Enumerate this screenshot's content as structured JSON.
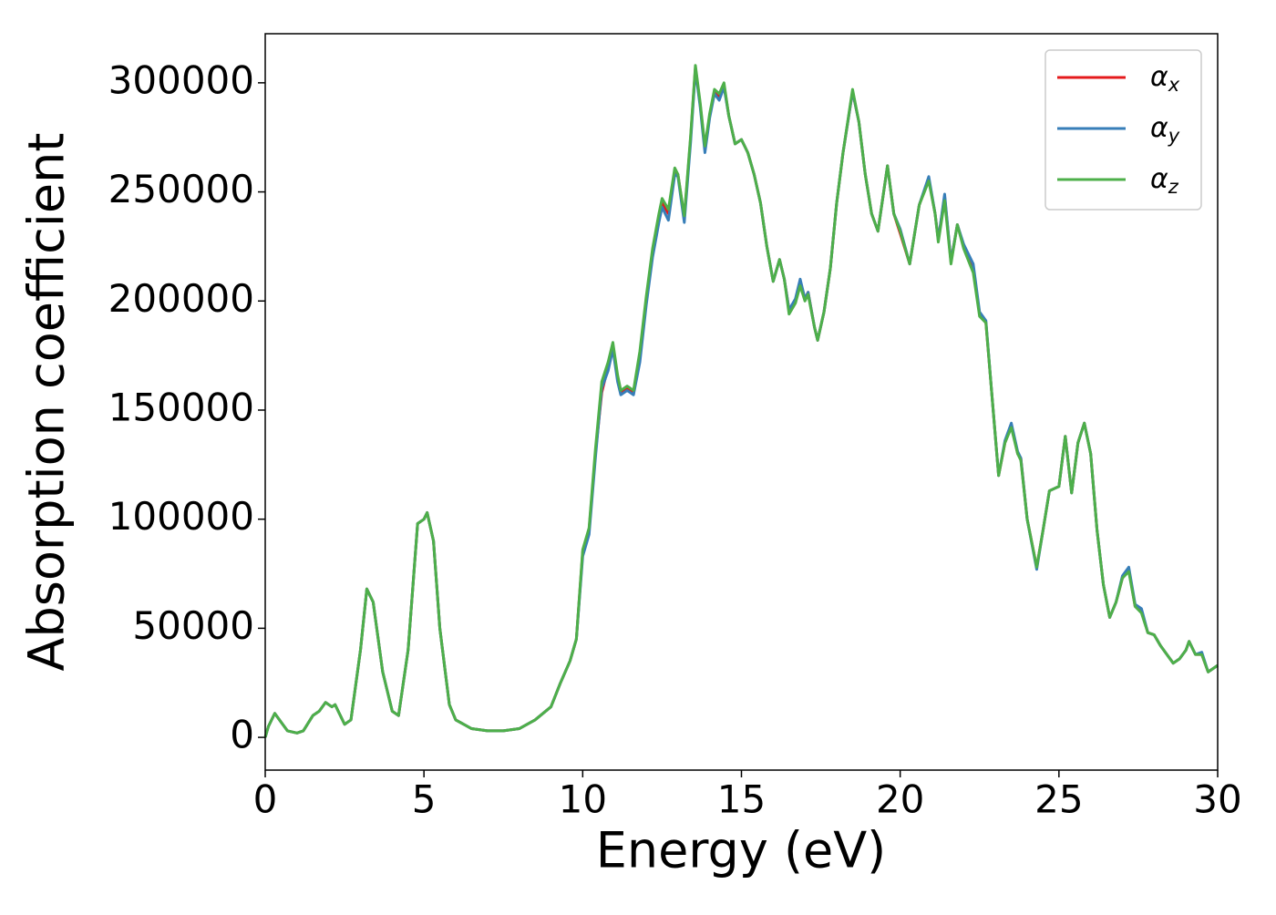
{
  "chart_data": {
    "type": "line",
    "xlabel": "Energy (eV)",
    "ylabel": "Absorption coefficient",
    "x": [
      0,
      0.1,
      0.3,
      0.5,
      0.7,
      1.0,
      1.2,
      1.5,
      1.7,
      1.9,
      2.1,
      2.2,
      2.5,
      2.7,
      3.0,
      3.2,
      3.4,
      3.7,
      4.0,
      4.2,
      4.5,
      4.8,
      5.0,
      5.1,
      5.3,
      5.5,
      5.8,
      6.0,
      6.5,
      7.0,
      7.5,
      8.0,
      8.5,
      9.0,
      9.3,
      9.6,
      9.8,
      10.0,
      10.2,
      10.4,
      10.6,
      10.8,
      10.95,
      11.1,
      11.2,
      11.4,
      11.6,
      11.8,
      12.0,
      12.2,
      12.4,
      12.5,
      12.7,
      12.9,
      13.0,
      13.2,
      13.4,
      13.55,
      13.7,
      13.85,
      14.0,
      14.15,
      14.3,
      14.45,
      14.6,
      14.8,
      15.0,
      15.2,
      15.4,
      15.6,
      15.8,
      16.0,
      16.2,
      16.35,
      16.5,
      16.7,
      16.85,
      17.0,
      17.1,
      17.3,
      17.4,
      17.6,
      17.8,
      18.0,
      18.2,
      18.5,
      18.7,
      18.9,
      19.1,
      19.3,
      19.6,
      19.8,
      20.0,
      20.3,
      20.6,
      20.9,
      21.1,
      21.2,
      21.4,
      21.6,
      21.8,
      22.0,
      22.3,
      22.5,
      22.7,
      22.9,
      23.1,
      23.3,
      23.5,
      23.7,
      23.8,
      24.0,
      24.3,
      24.5,
      24.7,
      25.0,
      25.2,
      25.4,
      25.6,
      25.8,
      26.0,
      26.2,
      26.4,
      26.6,
      26.8,
      27.0,
      27.2,
      27.4,
      27.6,
      27.8,
      28.0,
      28.2,
      28.4,
      28.6,
      28.8,
      29.0,
      29.1,
      29.3,
      29.5,
      29.7,
      30.0
    ],
    "series": [
      {
        "name": "αx",
        "color": "#e41a1c",
        "values": [
          0,
          5000,
          11000,
          7000,
          3000,
          2000,
          3000,
          10000,
          12000,
          16000,
          14000,
          15000,
          6000,
          8000,
          40000,
          68000,
          62000,
          30000,
          12000,
          10000,
          40000,
          98000,
          100000,
          103000,
          90000,
          50000,
          15000,
          8000,
          4000,
          3000,
          3000,
          4000,
          8000,
          14000,
          25000,
          35000,
          45000,
          85000,
          95000,
          130000,
          158000,
          170000,
          180000,
          165000,
          158000,
          160000,
          158000,
          175000,
          200000,
          222000,
          238000,
          245000,
          240000,
          260000,
          258000,
          238000,
          275000,
          307000,
          290000,
          270000,
          285000,
          296000,
          294000,
          299000,
          285000,
          272000,
          274000,
          268000,
          258000,
          245000,
          225000,
          209000,
          219000,
          210000,
          196000,
          200000,
          209000,
          201000,
          204000,
          188000,
          182000,
          195000,
          215000,
          245000,
          268000,
          296000,
          282000,
          258000,
          240000,
          232000,
          262000,
          240000,
          231000,
          217000,
          244000,
          256000,
          240000,
          228000,
          248000,
          218000,
          235000,
          225000,
          215000,
          194000,
          190000,
          155000,
          120000,
          135000,
          143000,
          130000,
          128000,
          100000,
          78000,
          95000,
          113000,
          115000,
          138000,
          112000,
          135000,
          144000,
          130000,
          95000,
          70000,
          55000,
          62000,
          73000,
          77000,
          60000,
          58000,
          48000,
          47000,
          42000,
          38000,
          34000,
          36000,
          40000,
          44000,
          38000,
          38000,
          30000,
          33000
        ]
      },
      {
        "name": "αy",
        "color": "#377eb8",
        "values": [
          0,
          5000,
          11000,
          7000,
          3000,
          2000,
          3000,
          10000,
          12000,
          16000,
          14000,
          15000,
          6000,
          8000,
          40000,
          68000,
          62000,
          30000,
          12000,
          10000,
          40000,
          98000,
          100000,
          103000,
          90000,
          50000,
          15000,
          8000,
          4000,
          3000,
          3000,
          4000,
          8000,
          14000,
          25000,
          35000,
          45000,
          83000,
          93000,
          128000,
          160000,
          168000,
          178000,
          163000,
          157000,
          159000,
          157000,
          172000,
          198000,
          220000,
          236000,
          243000,
          237000,
          258000,
          257000,
          236000,
          273000,
          306000,
          289000,
          268000,
          284000,
          295000,
          292000,
          298000,
          285000,
          272000,
          274000,
          268000,
          258000,
          245000,
          225000,
          209000,
          219000,
          210000,
          196000,
          201000,
          210000,
          201000,
          204000,
          188000,
          182000,
          195000,
          215000,
          245000,
          268000,
          296000,
          282000,
          258000,
          240000,
          232000,
          262000,
          240000,
          233000,
          217000,
          244000,
          257000,
          240000,
          228000,
          249000,
          218000,
          235000,
          226000,
          217000,
          195000,
          191000,
          155000,
          120000,
          136000,
          144000,
          131000,
          128000,
          100000,
          77000,
          95000,
          113000,
          115000,
          138000,
          112000,
          135000,
          144000,
          130000,
          95000,
          70000,
          55000,
          62000,
          74000,
          78000,
          61000,
          59000,
          48000,
          47000,
          42000,
          38000,
          34000,
          36000,
          40000,
          44000,
          38000,
          39000,
          30000,
          33000
        ]
      },
      {
        "name": "αz",
        "color": "#4daf4a",
        "values": [
          0,
          5000,
          11000,
          7000,
          3000,
          2000,
          3000,
          10000,
          12000,
          16000,
          14000,
          15000,
          6000,
          8000,
          40000,
          68000,
          62000,
          30000,
          12000,
          10000,
          40000,
          98000,
          100000,
          103000,
          90000,
          50000,
          15000,
          8000,
          4000,
          3000,
          3000,
          4000,
          8000,
          14000,
          25000,
          35000,
          45000,
          86000,
          96000,
          132000,
          163000,
          172000,
          181000,
          166000,
          159000,
          161000,
          159000,
          177000,
          202000,
          224000,
          240000,
          247000,
          242000,
          261000,
          258000,
          239000,
          276000,
          308000,
          291000,
          271000,
          286000,
          297000,
          295000,
          300000,
          285000,
          272000,
          274000,
          268000,
          258000,
          245000,
          225000,
          209000,
          219000,
          210000,
          194000,
          199000,
          207000,
          200000,
          203000,
          188000,
          182000,
          195000,
          215000,
          245000,
          268000,
          297000,
          282000,
          258000,
          240000,
          232000,
          262000,
          240000,
          232000,
          217000,
          244000,
          255000,
          240000,
          227000,
          246000,
          217000,
          235000,
          224000,
          213000,
          193000,
          190000,
          155000,
          120000,
          135000,
          142000,
          130000,
          127000,
          100000,
          78000,
          95000,
          113000,
          115000,
          138000,
          112000,
          135000,
          144000,
          130000,
          95000,
          70000,
          55000,
          62000,
          73000,
          76000,
          60000,
          57000,
          48000,
          47000,
          42000,
          38000,
          34000,
          36000,
          40000,
          44000,
          38000,
          38000,
          30000,
          33000
        ]
      }
    ],
    "xlim": [
      0,
      30
    ],
    "xticks": [
      0,
      5,
      10,
      15,
      20,
      25,
      30
    ],
    "ylim": [
      -15000,
      322500
    ],
    "yticks": [
      0,
      50000,
      100000,
      150000,
      200000,
      250000,
      300000
    ],
    "legend": "upper right"
  }
}
